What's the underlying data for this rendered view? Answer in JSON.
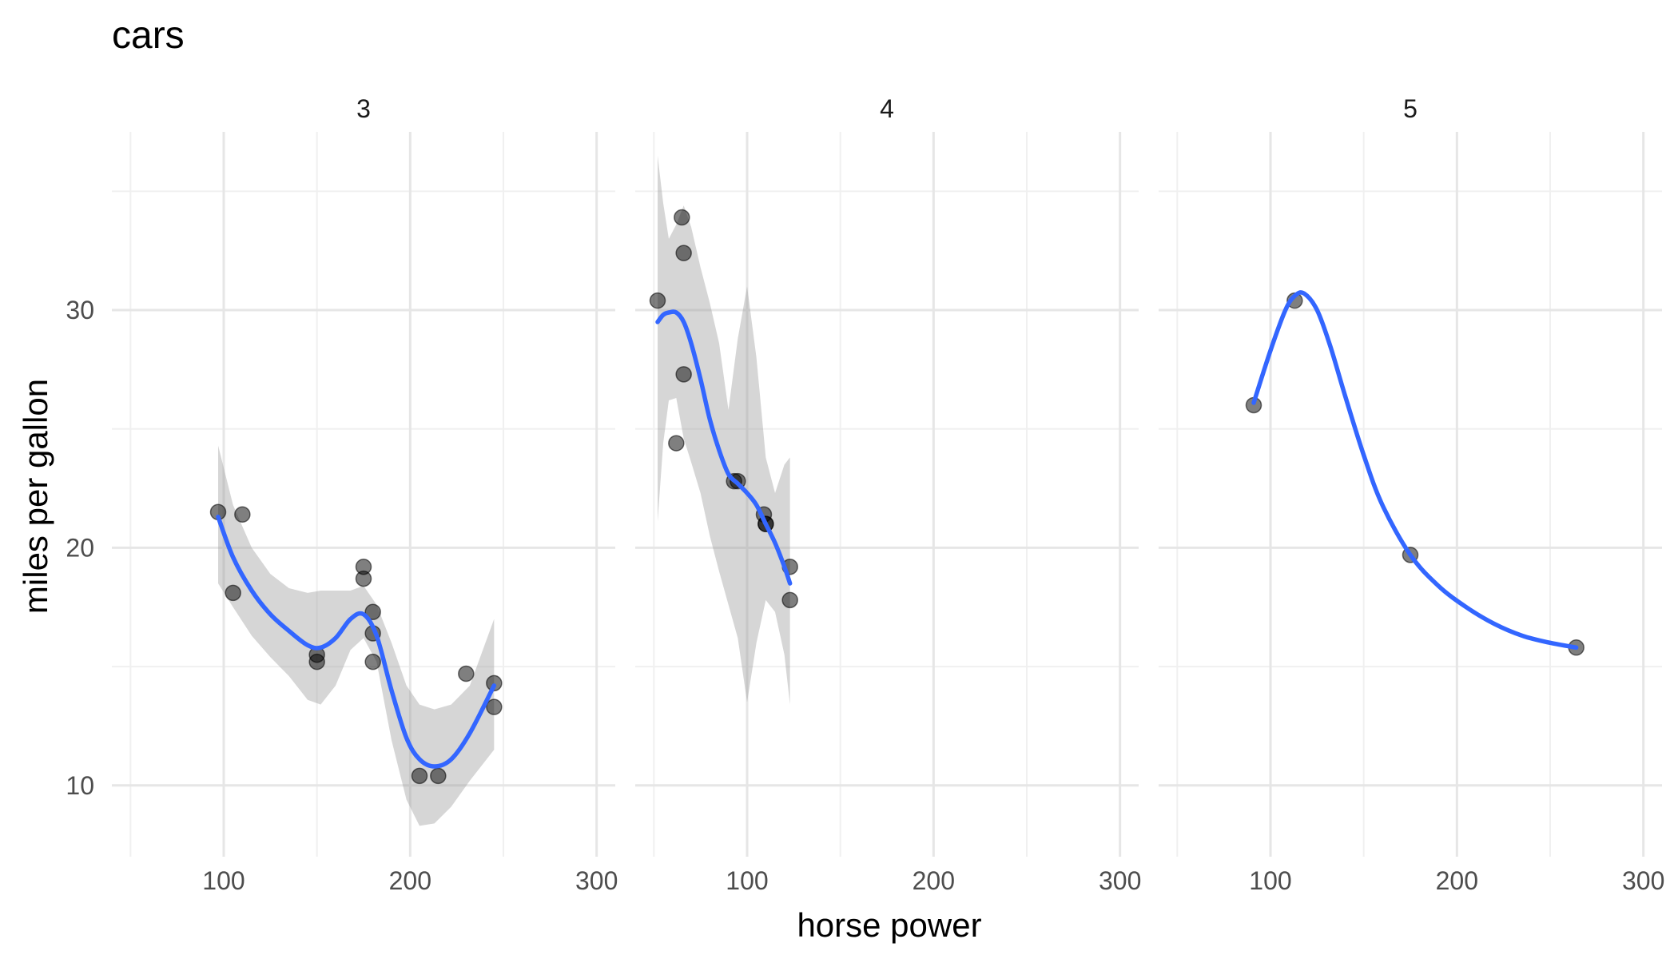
{
  "chart_data": {
    "type": "scatter",
    "title": "cars",
    "xlabel": "horse power",
    "ylabel": "miles per gallon",
    "xlim": [
      40,
      310
    ],
    "ylim": [
      7,
      37.5
    ],
    "x_ticks": [
      100,
      200,
      300
    ],
    "y_ticks": [
      10,
      20,
      30
    ],
    "grid": true,
    "facets": [
      {
        "label": "3",
        "points": [
          [
            97,
            21.5
          ],
          [
            105,
            18.1
          ],
          [
            110,
            21.4
          ],
          [
            150,
            15.5
          ],
          [
            150,
            15.2
          ],
          [
            175,
            19.2
          ],
          [
            175,
            18.7
          ],
          [
            180,
            17.3
          ],
          [
            180,
            16.4
          ],
          [
            180,
            15.2
          ],
          [
            205,
            10.4
          ],
          [
            215,
            10.4
          ],
          [
            230,
            14.7
          ],
          [
            245,
            14.3
          ],
          [
            245,
            13.3
          ]
        ],
        "smooth": [
          [
            97,
            21.3
          ],
          [
            105,
            19.6
          ],
          [
            115,
            18.2
          ],
          [
            125,
            17.2
          ],
          [
            135,
            16.5
          ],
          [
            145,
            15.9
          ],
          [
            152,
            15.8
          ],
          [
            160,
            16.2
          ],
          [
            168,
            17.0
          ],
          [
            175,
            17.2
          ],
          [
            182,
            16.3
          ],
          [
            190,
            14.0
          ],
          [
            198,
            12.0
          ],
          [
            205,
            11.1
          ],
          [
            213,
            10.8
          ],
          [
            222,
            11.1
          ],
          [
            232,
            12.2
          ],
          [
            245,
            14.2
          ]
        ],
        "band_upper": [
          [
            97,
            24.3
          ],
          [
            105,
            21.8
          ],
          [
            115,
            20.0
          ],
          [
            125,
            18.9
          ],
          [
            135,
            18.3
          ],
          [
            145,
            18.1
          ],
          [
            152,
            18.2
          ],
          [
            160,
            18.2
          ],
          [
            168,
            18.2
          ],
          [
            175,
            18.4
          ],
          [
            182,
            17.6
          ],
          [
            190,
            16.0
          ],
          [
            198,
            14.2
          ],
          [
            205,
            13.4
          ],
          [
            213,
            13.2
          ],
          [
            222,
            13.4
          ],
          [
            232,
            14.2
          ],
          [
            245,
            17.0
          ]
        ],
        "band_lower": [
          [
            97,
            18.5
          ],
          [
            105,
            17.5
          ],
          [
            115,
            16.3
          ],
          [
            125,
            15.4
          ],
          [
            135,
            14.6
          ],
          [
            145,
            13.6
          ],
          [
            152,
            13.4
          ],
          [
            160,
            14.2
          ],
          [
            168,
            15.7
          ],
          [
            175,
            16.2
          ],
          [
            182,
            15.2
          ],
          [
            190,
            11.9
          ],
          [
            198,
            9.4
          ],
          [
            205,
            8.3
          ],
          [
            213,
            8.4
          ],
          [
            222,
            9.1
          ],
          [
            232,
            10.2
          ],
          [
            245,
            11.5
          ]
        ]
      },
      {
        "label": "4",
        "points": [
          [
            52,
            30.4
          ],
          [
            62,
            24.4
          ],
          [
            65,
            33.9
          ],
          [
            66,
            32.4
          ],
          [
            66,
            27.3
          ],
          [
            93,
            22.8
          ],
          [
            95,
            22.8
          ],
          [
            109,
            21.4
          ],
          [
            110,
            21.0
          ],
          [
            110,
            21.0
          ],
          [
            123,
            19.2
          ],
          [
            123,
            17.8
          ]
        ],
        "smooth": [
          [
            52,
            29.5
          ],
          [
            55,
            29.8
          ],
          [
            58,
            29.9
          ],
          [
            62,
            29.9
          ],
          [
            66,
            29.5
          ],
          [
            70,
            28.6
          ],
          [
            75,
            27.1
          ],
          [
            80,
            25.4
          ],
          [
            85,
            24.1
          ],
          [
            90,
            23.1
          ],
          [
            95,
            22.7
          ],
          [
            100,
            22.3
          ],
          [
            105,
            21.8
          ],
          [
            110,
            21.0
          ],
          [
            115,
            20.2
          ],
          [
            120,
            19.2
          ],
          [
            123,
            18.5
          ]
        ],
        "band_upper": [
          [
            52,
            36.5
          ],
          [
            55,
            34.5
          ],
          [
            58,
            33.0
          ],
          [
            62,
            33.6
          ],
          [
            66,
            34.4
          ],
          [
            70,
            33.5
          ],
          [
            75,
            31.8
          ],
          [
            80,
            30.3
          ],
          [
            85,
            28.6
          ],
          [
            90,
            25.8
          ],
          [
            95,
            28.8
          ],
          [
            100,
            31.0
          ],
          [
            105,
            28.0
          ],
          [
            110,
            23.8
          ],
          [
            115,
            22.3
          ],
          [
            120,
            23.5
          ],
          [
            123,
            23.8
          ]
        ],
        "band_lower": [
          [
            52,
            21.1
          ],
          [
            55,
            24.4
          ],
          [
            58,
            26.2
          ],
          [
            62,
            26.3
          ],
          [
            66,
            24.6
          ],
          [
            70,
            23.6
          ],
          [
            75,
            22.3
          ],
          [
            80,
            20.5
          ],
          [
            85,
            19.0
          ],
          [
            90,
            17.6
          ],
          [
            95,
            16.2
          ],
          [
            100,
            13.5
          ],
          [
            105,
            16.0
          ],
          [
            110,
            17.8
          ],
          [
            115,
            17.3
          ],
          [
            120,
            15.5
          ],
          [
            123,
            13.4
          ]
        ]
      },
      {
        "label": "5",
        "points": [
          [
            91,
            26.0
          ],
          [
            113,
            30.4
          ],
          [
            175,
            19.7
          ],
          [
            264,
            15.8
          ]
        ],
        "smooth": [
          [
            91,
            26.1
          ],
          [
            100,
            28.3
          ],
          [
            108,
            30.0
          ],
          [
            113,
            30.6
          ],
          [
            118,
            30.7
          ],
          [
            125,
            30.0
          ],
          [
            132,
            28.5
          ],
          [
            140,
            26.4
          ],
          [
            150,
            23.9
          ],
          [
            160,
            21.8
          ],
          [
            175,
            19.7
          ],
          [
            190,
            18.4
          ],
          [
            205,
            17.5
          ],
          [
            220,
            16.8
          ],
          [
            235,
            16.3
          ],
          [
            250,
            16.0
          ],
          [
            264,
            15.8
          ]
        ]
      }
    ]
  }
}
